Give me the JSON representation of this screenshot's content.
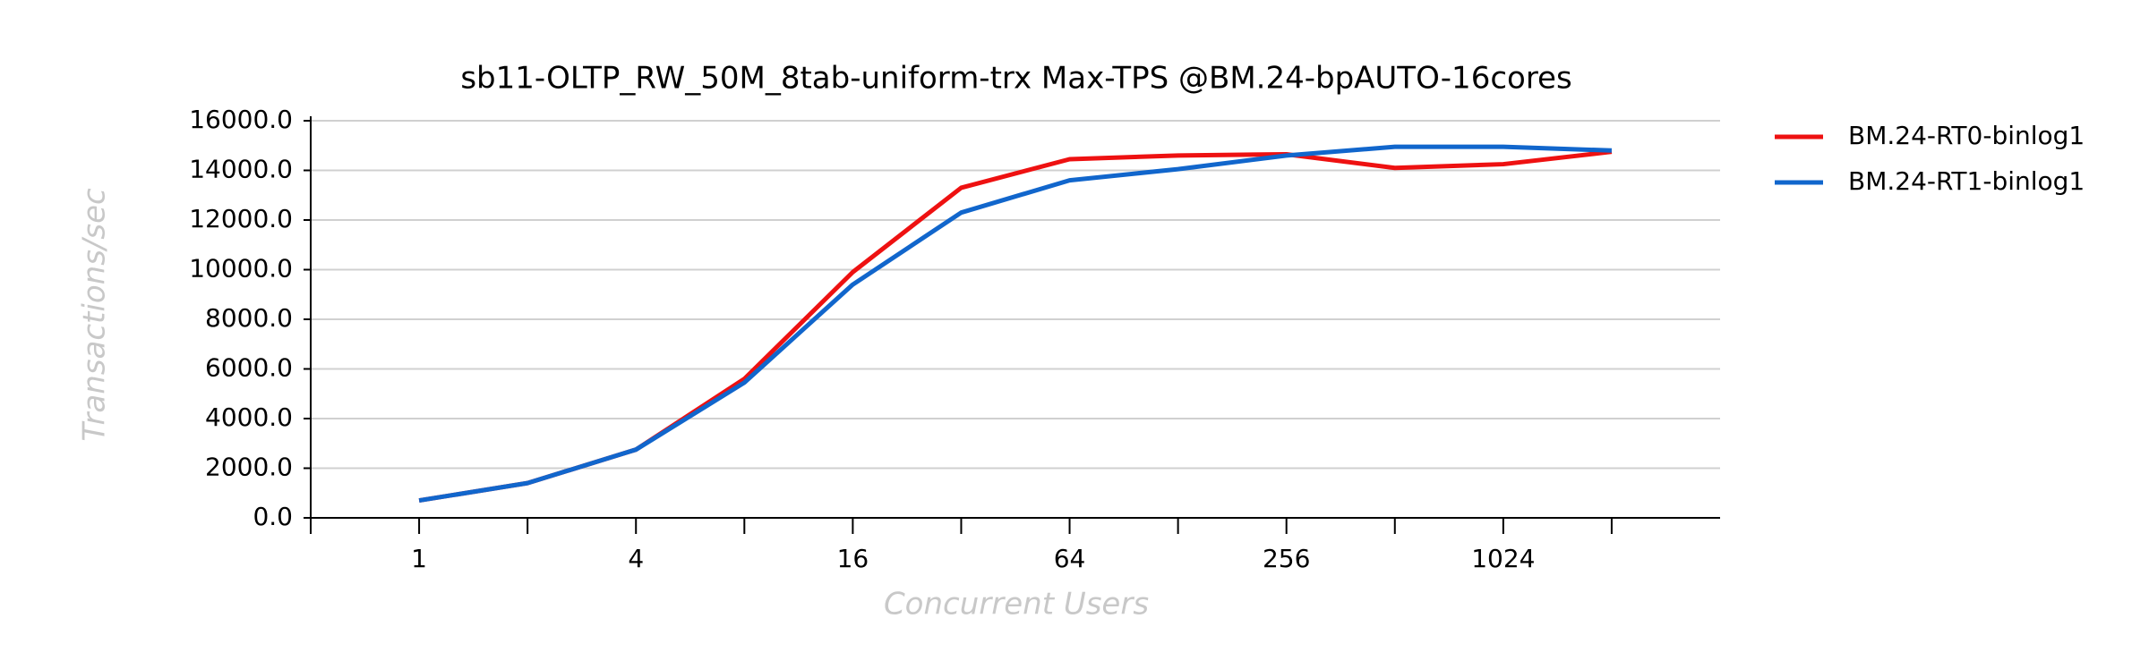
{
  "chart_data": {
    "type": "line",
    "title": "sb11-OLTP_RW_50M_8tab-uniform-trx Max-TPS @BM.24-bpAUTO-16cores",
    "x_label": "Concurrent Users",
    "y_label": "Transactions/sec",
    "x": [
      1,
      2,
      4,
      8,
      16,
      32,
      64,
      128,
      256,
      512,
      1024,
      2048
    ],
    "series": [
      {
        "name": "BM.24-RT0-binlog1",
        "color": "#ee1111",
        "values": [
          700,
          1400,
          2750,
          5600,
          9900,
          13300,
          14450,
          14600,
          14650,
          14100,
          14250,
          14750
        ]
      },
      {
        "name": "BM.24-RT1-binlog1",
        "color": "#1166cc",
        "values": [
          700,
          1400,
          2750,
          5450,
          9400,
          12300,
          13600,
          14050,
          14600,
          14950,
          14950,
          14800
        ]
      }
    ],
    "x_log_base": 2,
    "xlim": [
      0.5,
      4096
    ],
    "xticks": [
      1,
      4,
      16,
      64,
      256,
      1024
    ],
    "x_minor_ticks": [
      0.5,
      2,
      8,
      32,
      128,
      512,
      2048
    ],
    "ylim": [
      0,
      16000
    ],
    "yticks": [
      {
        "value": 0,
        "label": "0.0"
      },
      {
        "value": 2000,
        "label": "2000.0"
      },
      {
        "value": 4000,
        "label": "4000.0"
      },
      {
        "value": 6000,
        "label": "6000.0"
      },
      {
        "value": 8000,
        "label": "8000.0"
      },
      {
        "value": 10000,
        "label": "10000.0"
      },
      {
        "value": 12000,
        "label": "12000.0"
      },
      {
        "value": 14000,
        "label": "14000.0"
      },
      {
        "value": 16000,
        "label": "16000.0"
      }
    ],
    "grid": true,
    "legend": "right"
  }
}
